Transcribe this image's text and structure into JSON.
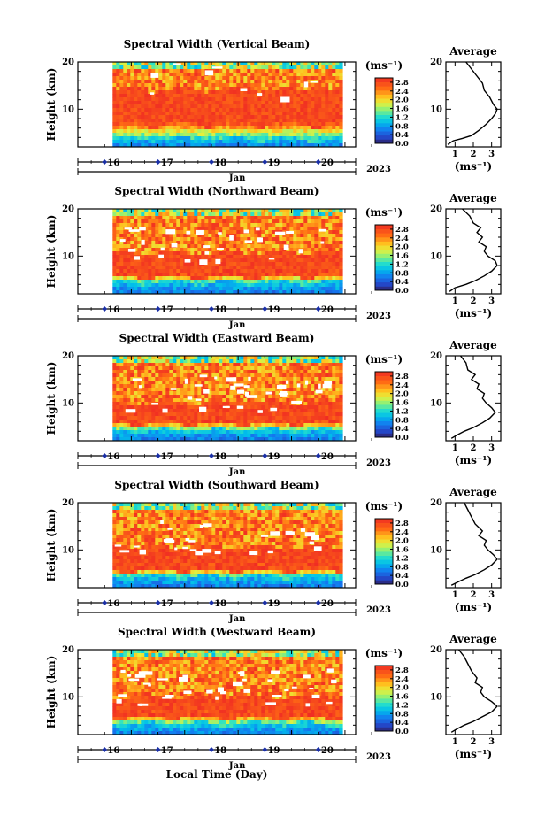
{
  "figure": {
    "xlabel": "Local Time (Day)",
    "month_label": "Jan",
    "year_label": "2023",
    "units": "(ms⁻¹)",
    "profile_title": "Average",
    "profile_xlabel": "(ms⁻¹)"
  },
  "chart_data": [
    {
      "type": "heatmap",
      "title": "Spectral Width (Vertical Beam)",
      "ylabel": "Height (km)",
      "x_ticks": [
        "16",
        "17",
        "18",
        "19",
        "20"
      ],
      "x_range_days": [
        15.0,
        20.2
      ],
      "data_start_day": 15.65,
      "data_end_day": 19.95,
      "ylim": [
        2,
        20
      ],
      "y_ticks": [
        10,
        20
      ],
      "colorbar_ticks": [
        "0.0",
        "0.4",
        "0.8",
        "1.2",
        "1.6",
        "2.0",
        "2.4",
        "2.8"
      ],
      "colorbar_range": [
        0,
        3.0
      ],
      "pattern": {
        "blue_top_km": 4.0,
        "red_bottom_km": 7.5,
        "red_top_km": 14.5,
        "white_gaps": 10
      },
      "profile": {
        "title": "Average",
        "xlim": [
          0.5,
          3.5
        ],
        "x_ticks": [
          "1",
          "2",
          "3"
        ],
        "ylim": [
          2,
          20
        ],
        "y_ticks": [
          10,
          20
        ],
        "points": [
          [
            0.6,
            2.5
          ],
          [
            0.9,
            3.3
          ],
          [
            1.4,
            3.8
          ],
          [
            1.9,
            4.4
          ],
          [
            2.3,
            5.5
          ],
          [
            2.7,
            6.8
          ],
          [
            3.0,
            8.0
          ],
          [
            3.2,
            9.0
          ],
          [
            3.3,
            10.0
          ],
          [
            3.1,
            11.0
          ],
          [
            2.9,
            12.5
          ],
          [
            2.6,
            14.0
          ],
          [
            2.5,
            15.5
          ],
          [
            2.2,
            17.0
          ],
          [
            1.9,
            18.5
          ],
          [
            1.6,
            20.0
          ]
        ]
      }
    },
    {
      "type": "heatmap",
      "title": "Spectral Width (Northward Beam)",
      "ylabel": "Height (km)",
      "x_ticks": [
        "16",
        "17",
        "18",
        "19",
        "20"
      ],
      "x_range_days": [
        15.0,
        20.2
      ],
      "data_start_day": 15.65,
      "data_end_day": 19.95,
      "ylim": [
        2,
        20
      ],
      "y_ticks": [
        10,
        20
      ],
      "colorbar_ticks": [
        "0.0",
        "0.4",
        "0.8",
        "1.2",
        "1.6",
        "2.0",
        "2.4",
        "2.8"
      ],
      "colorbar_range": [
        0,
        3.0
      ],
      "pattern": {
        "blue_top_km": 4.8,
        "red_bottom_km": 6.5,
        "red_top_km": 11.0,
        "white_gaps": 32
      },
      "profile": {
        "title": "Average",
        "xlim": [
          0.5,
          3.5
        ],
        "x_ticks": [
          "1",
          "2",
          "3"
        ],
        "ylim": [
          2,
          20
        ],
        "y_ticks": [
          10,
          20
        ],
        "points": [
          [
            0.7,
            2.5
          ],
          [
            1.0,
            3.3
          ],
          [
            1.6,
            4.0
          ],
          [
            2.1,
            4.8
          ],
          [
            2.6,
            5.8
          ],
          [
            3.0,
            6.8
          ],
          [
            3.3,
            8.0
          ],
          [
            3.2,
            9.0
          ],
          [
            2.8,
            10.0
          ],
          [
            2.6,
            11.0
          ],
          [
            2.7,
            12.0
          ],
          [
            2.3,
            13.0
          ],
          [
            2.5,
            14.0
          ],
          [
            2.2,
            15.0
          ],
          [
            2.4,
            16.0
          ],
          [
            2.0,
            17.0
          ],
          [
            1.8,
            18.5
          ],
          [
            1.4,
            20.0
          ]
        ]
      }
    },
    {
      "type": "heatmap",
      "title": "Spectral Width (Eastward Beam)",
      "ylabel": "Height (km)",
      "x_ticks": [
        "16",
        "17",
        "18",
        "19",
        "20"
      ],
      "x_range_days": [
        15.0,
        20.2
      ],
      "data_start_day": 15.65,
      "data_end_day": 19.95,
      "ylim": [
        2,
        20
      ],
      "y_ticks": [
        10,
        20
      ],
      "colorbar_ticks": [
        "0.0",
        "0.4",
        "0.8",
        "1.2",
        "1.6",
        "2.0",
        "2.4",
        "2.8"
      ],
      "colorbar_range": [
        0,
        3.0
      ],
      "pattern": {
        "blue_top_km": 4.5,
        "red_bottom_km": 6.5,
        "red_top_km": 10.5,
        "white_gaps": 38
      },
      "profile": {
        "title": "Average",
        "xlim": [
          0.5,
          3.5
        ],
        "x_ticks": [
          "1",
          "2",
          "3"
        ],
        "ylim": [
          2,
          20
        ],
        "y_ticks": [
          10,
          20
        ],
        "points": [
          [
            0.8,
            2.5
          ],
          [
            1.1,
            3.2
          ],
          [
            1.5,
            4.0
          ],
          [
            2.0,
            4.8
          ],
          [
            2.5,
            5.8
          ],
          [
            2.9,
            6.8
          ],
          [
            3.2,
            8.0
          ],
          [
            3.0,
            9.0
          ],
          [
            2.7,
            10.0
          ],
          [
            2.5,
            11.0
          ],
          [
            2.6,
            12.0
          ],
          [
            2.2,
            13.0
          ],
          [
            2.3,
            14.0
          ],
          [
            1.9,
            15.0
          ],
          [
            2.1,
            16.0
          ],
          [
            1.7,
            17.0
          ],
          [
            1.6,
            18.5
          ],
          [
            1.3,
            20.0
          ]
        ]
      }
    },
    {
      "type": "heatmap",
      "title": "Spectral Width (Southward Beam)",
      "ylabel": "Height (km)",
      "x_ticks": [
        "16",
        "17",
        "18",
        "19",
        "20"
      ],
      "x_range_days": [
        15.0,
        20.2
      ],
      "data_start_day": 15.65,
      "data_end_day": 19.95,
      "ylim": [
        2,
        20
      ],
      "y_ticks": [
        10,
        20
      ],
      "colorbar_ticks": [
        "0.0",
        "0.4",
        "0.8",
        "1.2",
        "1.6",
        "2.0",
        "2.4",
        "2.8"
      ],
      "colorbar_range": [
        0,
        3.0
      ],
      "pattern": {
        "blue_top_km": 4.8,
        "red_bottom_km": 6.5,
        "red_top_km": 11.0,
        "white_gaps": 30
      },
      "profile": {
        "title": "Average",
        "xlim": [
          0.5,
          3.5
        ],
        "x_ticks": [
          "1",
          "2",
          "3"
        ],
        "ylim": [
          2,
          20
        ],
        "y_ticks": [
          10,
          20
        ],
        "points": [
          [
            0.8,
            2.5
          ],
          [
            1.2,
            3.3
          ],
          [
            1.6,
            4.0
          ],
          [
            2.1,
            4.8
          ],
          [
            2.6,
            5.8
          ],
          [
            3.0,
            6.8
          ],
          [
            3.3,
            8.0
          ],
          [
            3.1,
            9.0
          ],
          [
            2.8,
            10.0
          ],
          [
            2.6,
            11.0
          ],
          [
            2.7,
            12.0
          ],
          [
            2.3,
            13.0
          ],
          [
            2.5,
            14.0
          ],
          [
            2.1,
            15.5
          ],
          [
            1.9,
            17.0
          ],
          [
            1.7,
            18.5
          ],
          [
            1.5,
            20.0
          ]
        ]
      }
    },
    {
      "type": "heatmap",
      "title": "Spectral Width (Westward Beam)",
      "ylabel": "Height (km)",
      "x_ticks": [
        "16",
        "17",
        "18",
        "19",
        "20"
      ],
      "x_range_days": [
        15.0,
        20.2
      ],
      "data_start_day": 15.65,
      "data_end_day": 19.95,
      "ylim": [
        2,
        20
      ],
      "y_ticks": [
        10,
        20
      ],
      "colorbar_ticks": [
        "0.0",
        "0.4",
        "0.8",
        "1.2",
        "1.6",
        "2.0",
        "2.4",
        "2.8"
      ],
      "colorbar_range": [
        0,
        3.0
      ],
      "pattern": {
        "blue_top_km": 4.5,
        "red_bottom_km": 6.5,
        "red_top_km": 10.5,
        "white_gaps": 40
      },
      "profile": {
        "title": "Average",
        "xlim": [
          0.5,
          3.5
        ],
        "x_ticks": [
          "1",
          "2",
          "3"
        ],
        "ylim": [
          2,
          20
        ],
        "y_ticks": [
          10,
          20
        ],
        "points": [
          [
            0.8,
            2.5
          ],
          [
            1.1,
            3.2
          ],
          [
            1.5,
            4.0
          ],
          [
            2.0,
            4.8
          ],
          [
            2.5,
            5.8
          ],
          [
            3.0,
            6.8
          ],
          [
            3.3,
            8.0
          ],
          [
            3.0,
            9.0
          ],
          [
            2.6,
            10.0
          ],
          [
            2.4,
            11.0
          ],
          [
            2.5,
            12.0
          ],
          [
            2.1,
            13.0
          ],
          [
            2.2,
            14.0
          ],
          [
            1.9,
            15.5
          ],
          [
            1.7,
            17.0
          ],
          [
            1.5,
            18.5
          ],
          [
            1.2,
            20.0
          ]
        ]
      }
    }
  ]
}
